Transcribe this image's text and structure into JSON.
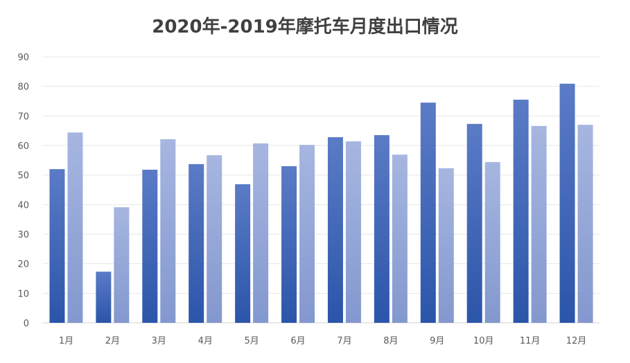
{
  "chart_data": {
    "type": "bar",
    "title": "2020年-2019年摩托车月度出口情况",
    "categories": [
      "1月",
      "2月",
      "3月",
      "4月",
      "5月",
      "6月",
      "7月",
      "8月",
      "9月",
      "10月",
      "11月",
      "12月"
    ],
    "series": [
      {
        "values": [
          52.0,
          17.3,
          51.8,
          53.7,
          46.9,
          53.0,
          62.8,
          63.5,
          74.5,
          67.3,
          75.5,
          80.9
        ],
        "color_top": "#5b7bc6",
        "color_bottom": "#2b55a9"
      },
      {
        "values": [
          64.4,
          39.1,
          62.1,
          56.7,
          60.7,
          60.2,
          61.4,
          56.9,
          52.3,
          54.4,
          66.6,
          67.0
        ],
        "color_top": "#a6b6e0",
        "color_bottom": "#8398cf"
      }
    ],
    "ylim": [
      0,
      90
    ],
    "yticks": [
      0,
      10,
      20,
      30,
      40,
      50,
      60,
      70,
      80,
      90
    ],
    "grid": true,
    "legend": "none"
  }
}
